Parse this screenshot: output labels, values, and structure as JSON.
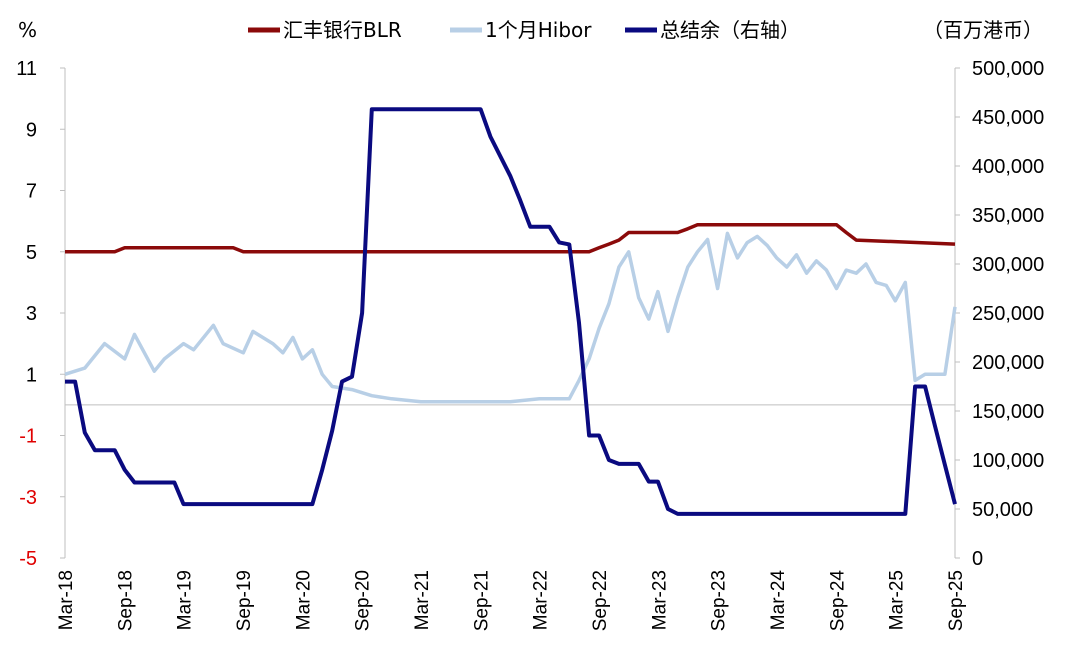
{
  "chart_data": {
    "type": "line",
    "left_unit": "%",
    "right_unit": "（百万港币）",
    "legend": [
      {
        "name": "汇丰银行BLR",
        "color": "#8b0a0a",
        "axis": "left"
      },
      {
        "name": "1个月Hibor",
        "color": "#b8cfe6",
        "axis": "left"
      },
      {
        "name": "总结余（右轴）",
        "color": "#0a0a80",
        "axis": "right"
      }
    ],
    "left_axis": {
      "min": -5,
      "max": 11,
      "ticks": [
        "11",
        "9",
        "7",
        "5",
        "3",
        "1",
        "-1",
        "-3",
        "-5"
      ]
    },
    "right_axis": {
      "min": 0,
      "max": 500000,
      "ticks": [
        "500,000",
        "450,000",
        "400,000",
        "350,000",
        "300,000",
        "250,000",
        "200,000",
        "150,000",
        "100,000",
        "50,000",
        "0"
      ]
    },
    "x_ticks": [
      "Mar-18",
      "Sep-18",
      "Mar-19",
      "Sep-19",
      "Mar-20",
      "Sep-20",
      "Mar-21",
      "Sep-21",
      "Mar-22",
      "Sep-22",
      "Mar-23",
      "Sep-23",
      "Mar-24",
      "Sep-24",
      "Mar-25",
      "Sep-25"
    ],
    "series": [
      {
        "name": "汇丰银行BLR",
        "axis": "left",
        "color": "#8b0a0a",
        "x": [
          "2018-03",
          "2018-08",
          "2018-09",
          "2019-08",
          "2019-09",
          "2022-08",
          "2022-09",
          "2022-10",
          "2022-11",
          "2022-12",
          "2023-05",
          "2023-06",
          "2023-07",
          "2024-09",
          "2024-10",
          "2024-11",
          "2025-09"
        ],
        "values": [
          5.0,
          5.0,
          5.13,
          5.13,
          5.0,
          5.0,
          5.13,
          5.25,
          5.38,
          5.63,
          5.63,
          5.75,
          5.88,
          5.88,
          5.63,
          5.38,
          5.25
        ]
      },
      {
        "name": "1个月Hibor",
        "axis": "left",
        "color": "#b8cfe6",
        "x": [
          "2018-03",
          "2018-05",
          "2018-07",
          "2018-09",
          "2018-10",
          "2018-12",
          "2019-01",
          "2019-03",
          "2019-04",
          "2019-06",
          "2019-07",
          "2019-09",
          "2019-10",
          "2019-12",
          "2020-01",
          "2020-02",
          "2020-03",
          "2020-04",
          "2020-05",
          "2020-06",
          "2020-08",
          "2020-10",
          "2020-12",
          "2021-03",
          "2021-06",
          "2021-09",
          "2021-12",
          "2022-03",
          "2022-06",
          "2022-07",
          "2022-08",
          "2022-09",
          "2022-10",
          "2022-11",
          "2022-12",
          "2023-01",
          "2023-02",
          "2023-03",
          "2023-04",
          "2023-05",
          "2023-06",
          "2023-07",
          "2023-08",
          "2023-09",
          "2023-10",
          "2023-11",
          "2023-12",
          "2024-01",
          "2024-02",
          "2024-03",
          "2024-04",
          "2024-05",
          "2024-06",
          "2024-07",
          "2024-08",
          "2024-09",
          "2024-10",
          "2024-11",
          "2024-12",
          "2025-01",
          "2025-02",
          "2025-03",
          "2025-04",
          "2025-05",
          "2025-06",
          "2025-07",
          "2025-08",
          "2025-09"
        ],
        "values": [
          1.0,
          1.2,
          2.0,
          1.5,
          2.3,
          1.1,
          1.5,
          2.0,
          1.8,
          2.6,
          2.0,
          1.7,
          2.4,
          2.0,
          1.7,
          2.2,
          1.5,
          1.8,
          1.0,
          0.6,
          0.5,
          0.3,
          0.2,
          0.1,
          0.1,
          0.1,
          0.1,
          0.2,
          0.2,
          0.8,
          1.5,
          2.5,
          3.3,
          4.5,
          5.0,
          3.5,
          2.8,
          3.7,
          2.4,
          3.5,
          4.5,
          5.0,
          5.4,
          3.8,
          5.6,
          4.8,
          5.3,
          5.5,
          5.2,
          4.8,
          4.5,
          4.9,
          4.3,
          4.7,
          4.4,
          3.8,
          4.4,
          4.3,
          4.6,
          4.0,
          3.9,
          3.4,
          4.0,
          0.8,
          1.0,
          1.0,
          1.0,
          3.2
        ]
      },
      {
        "name": "总结余（右轴）",
        "axis": "right",
        "color": "#0a0a80",
        "x": [
          "2018-03",
          "2018-04",
          "2018-05",
          "2018-06",
          "2018-08",
          "2018-09",
          "2018-10",
          "2018-12",
          "2019-02",
          "2019-03",
          "2019-06",
          "2019-09",
          "2019-12",
          "2020-03",
          "2020-04",
          "2020-05",
          "2020-06",
          "2020-07",
          "2020-08",
          "2020-09",
          "2020-10",
          "2020-11",
          "2020-12",
          "2021-03",
          "2021-06",
          "2021-09",
          "2021-10",
          "2021-12",
          "2022-01",
          "2022-02",
          "2022-03",
          "2022-04",
          "2022-05",
          "2022-06",
          "2022-07",
          "2022-08",
          "2022-09",
          "2022-10",
          "2022-11",
          "2022-12",
          "2023-01",
          "2023-02",
          "2023-03",
          "2023-04",
          "2023-05",
          "2023-06",
          "2023-09",
          "2023-12",
          "2024-06",
          "2024-12",
          "2025-03",
          "2025-04",
          "2025-05",
          "2025-06",
          "2025-07",
          "2025-08",
          "2025-09"
        ],
        "values": [
          180000,
          180000,
          128000,
          110000,
          110000,
          90000,
          77000,
          77000,
          77000,
          55000,
          55000,
          55000,
          55000,
          55000,
          55000,
          90000,
          130000,
          180000,
          185000,
          250000,
          458000,
          458000,
          458000,
          458000,
          458000,
          458000,
          430000,
          390000,
          365000,
          338000,
          338000,
          338000,
          322000,
          320000,
          240000,
          125000,
          125000,
          100000,
          96000,
          96000,
          96000,
          78000,
          78000,
          50000,
          45000,
          45000,
          45000,
          45000,
          45000,
          45000,
          45000,
          45000,
          175000,
          175000,
          135000,
          95000,
          55000
        ]
      }
    ]
  }
}
